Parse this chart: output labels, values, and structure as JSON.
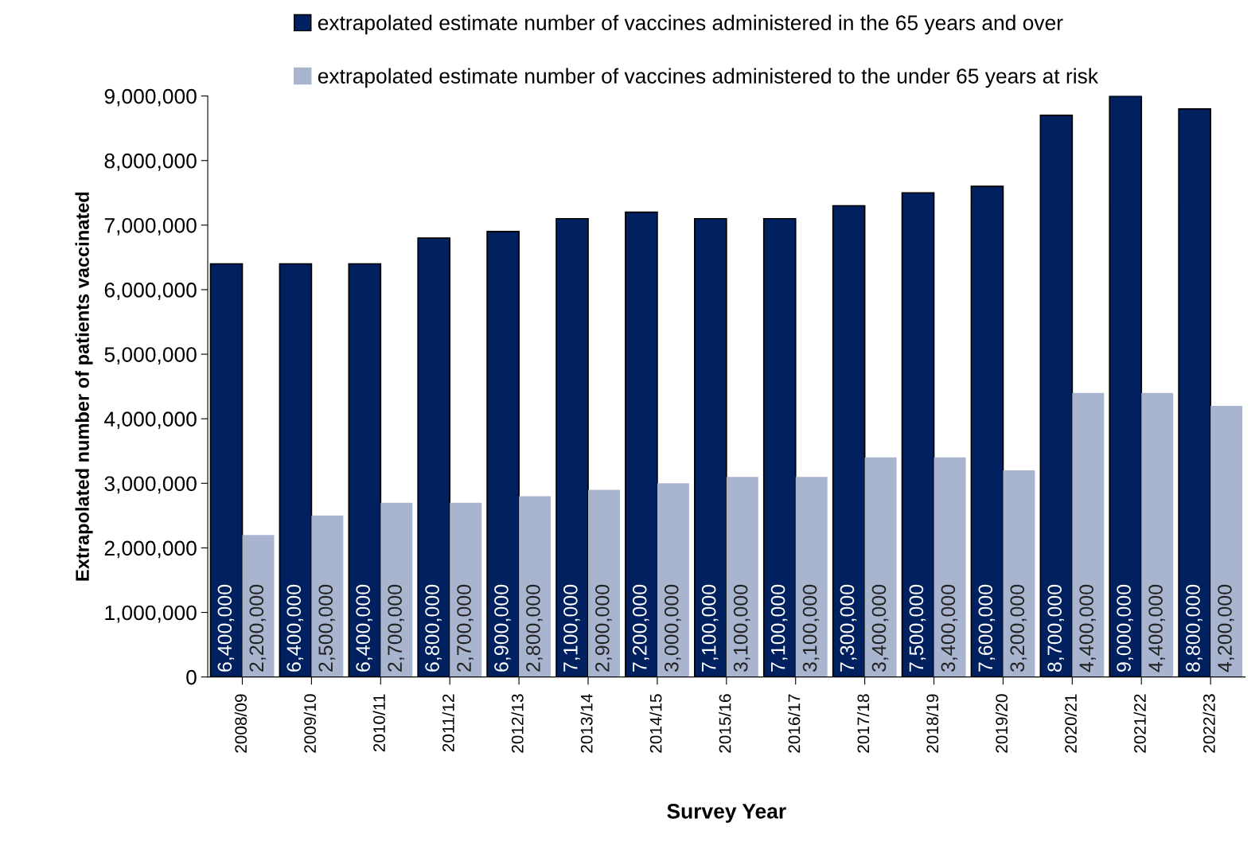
{
  "chart_data": {
    "type": "bar",
    "xlabel": "Survey Year",
    "ylabel": "Extrapolated number of patients vaccinated",
    "categories": [
      "2008/09",
      "2009/10",
      "2010/11",
      "2011/12",
      "2012/13",
      "2013/14",
      "2014/15",
      "2015/16",
      "2016/17",
      "2017/18",
      "2018/19",
      "2019/20",
      "2020/21",
      "2021/22",
      "2022/23"
    ],
    "series": [
      {
        "name": "extrapolated estimate number of vaccines administered in the 65 years and over",
        "color": "#002060",
        "values": [
          6400000,
          6400000,
          6400000,
          6800000,
          6900000,
          7100000,
          7200000,
          7100000,
          7100000,
          7300000,
          7500000,
          7600000,
          8700000,
          9000000,
          8800000
        ],
        "value_labels": [
          "6,400,000",
          "6,400,000",
          "6,400,000",
          "6,800,000",
          "6,900,000",
          "7,100,000",
          "7,200,000",
          "7,100,000",
          "7,100,000",
          "7,300,000",
          "7,500,000",
          "7,600,000",
          "8,700,000",
          "9,000,000",
          "8,800,000"
        ]
      },
      {
        "name": "extrapolated estimate number of vaccines administered to the under 65 years at risk",
        "color": "#a9b4cf",
        "values": [
          2200000,
          2500000,
          2700000,
          2700000,
          2800000,
          2900000,
          3000000,
          3100000,
          3100000,
          3400000,
          3400000,
          3200000,
          4400000,
          4400000,
          4200000
        ],
        "value_labels": [
          "2,200,000",
          "2,500,000",
          "2,700,000",
          "2,700,000",
          "2,800,000",
          "2,900,000",
          "3,000,000",
          "3,100,000",
          "3,100,000",
          "3,400,000",
          "3,400,000",
          "3,200,000",
          "4,400,000",
          "4,400,000",
          "4,200,000"
        ]
      }
    ],
    "ylim": [
      0,
      9000000
    ],
    "yticks": [
      {
        "value": 0,
        "label": "0"
      },
      {
        "value": 1000000,
        "label": "1,000,000"
      },
      {
        "value": 2000000,
        "label": "2,000,000"
      },
      {
        "value": 3000000,
        "label": "3,000,000"
      },
      {
        "value": 4000000,
        "label": "4,000,000"
      },
      {
        "value": 5000000,
        "label": "5,000,000"
      },
      {
        "value": 6000000,
        "label": "6,000,000"
      },
      {
        "value": 7000000,
        "label": "7,000,000"
      },
      {
        "value": 8000000,
        "label": "8,000,000"
      },
      {
        "value": 9000000,
        "label": "9,000,000"
      }
    ],
    "grid": false,
    "legend": "top"
  }
}
